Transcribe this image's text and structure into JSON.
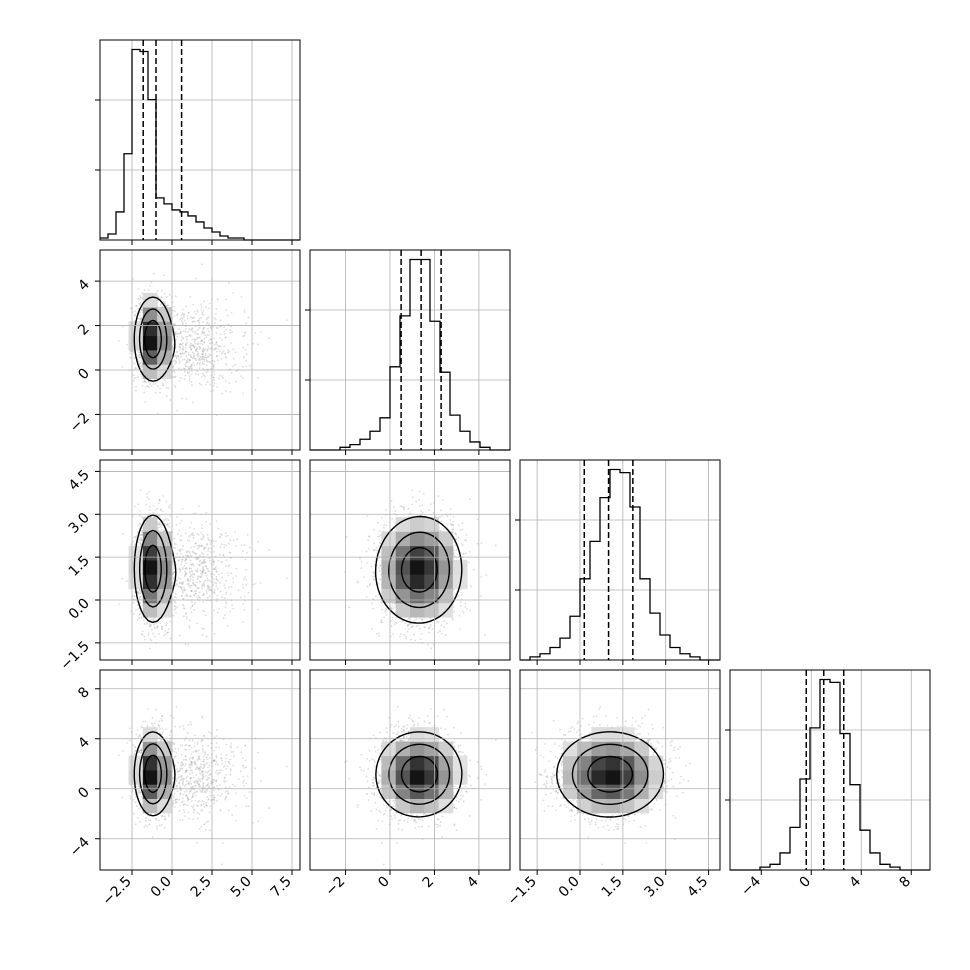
{
  "chart_data": {
    "type": "corner",
    "grid": true,
    "parameters": [
      {
        "range": [
          -4.5,
          8.0
        ],
        "ticks": [
          -2.5,
          0.0,
          2.5,
          5.0,
          7.5
        ],
        "tick_labels": [
          "−2.5",
          "0.0",
          "2.5",
          "5.0",
          "7.5"
        ],
        "quantiles": [
          -1.8,
          -1.0,
          0.6
        ],
        "hist": {
          "bin_start": -4.5,
          "bin_width": 0.5,
          "counts": [
            1,
            3,
            14,
            43,
            95,
            94,
            70,
            21,
            18,
            15,
            14,
            12,
            9,
            6,
            4,
            2,
            1,
            1,
            0,
            0,
            0,
            0,
            0,
            0,
            0
          ]
        }
      },
      {
        "range": [
          -3.6,
          5.4
        ],
        "ticks": [
          -2,
          0,
          2,
          4
        ],
        "tick_labels": [
          "−2",
          "0",
          "2",
          "4"
        ],
        "quantiles": [
          0.5,
          1.4,
          2.3
        ],
        "hist": {
          "bin_start": -3.6,
          "bin_width": 0.45,
          "counts": [
            0,
            0,
            0,
            1,
            2,
            4,
            7,
            12,
            31,
            50,
            71,
            71,
            48,
            29,
            13,
            7,
            3,
            1,
            0,
            0
          ]
        }
      },
      {
        "range": [
          -2.1,
          4.9
        ],
        "ticks": [
          -1.5,
          0.0,
          1.5,
          3.0,
          4.5
        ],
        "tick_labels": [
          "−1.5",
          "0.0",
          "1.5",
          "3.0",
          "4.5"
        ],
        "quantiles": [
          0.15,
          1.0,
          1.85
        ],
        "hist": {
          "bin_start": -2.1,
          "bin_width": 0.35,
          "counts": [
            0,
            1,
            2,
            4,
            7,
            14,
            26,
            38,
            52,
            61,
            60,
            49,
            26,
            15,
            8,
            4,
            2,
            1,
            0,
            0
          ]
        }
      },
      {
        "range": [
          -6.5,
          9.5
        ],
        "ticks": [
          -4,
          0,
          4,
          8
        ],
        "tick_labels": [
          "−4",
          "0",
          "4",
          "8"
        ],
        "quantiles": [
          -0.4,
          1.0,
          2.6
        ],
        "hist": {
          "bin_start": -6.5,
          "bin_width": 0.8,
          "counts": [
            0,
            0,
            0,
            1,
            2,
            6,
            15,
            32,
            50,
            67,
            66,
            48,
            30,
            14,
            6,
            2,
            1,
            0,
            0,
            0
          ]
        }
      }
    ],
    "density": {
      "grid": 14,
      "components": [
        {
          "mean": [
            -1.2,
            1.4,
            1.1,
            1.2
          ],
          "sd": [
            0.55,
            0.9,
            0.9,
            1.6
          ],
          "weight": 0.75
        },
        {
          "mean": [
            1.5,
            1.0,
            0.9,
            1.0
          ],
          "sd": [
            1.6,
            1.0,
            0.9,
            1.8
          ],
          "weight": 0.25
        }
      ],
      "contour_levels": [
        0.12,
        0.35,
        0.7
      ]
    },
    "colors": {
      "hist": "#000000",
      "quantile": "#000000",
      "contour": "#000000",
      "scatter": "#9e9e9e",
      "grid": "#b0b0b0"
    }
  }
}
